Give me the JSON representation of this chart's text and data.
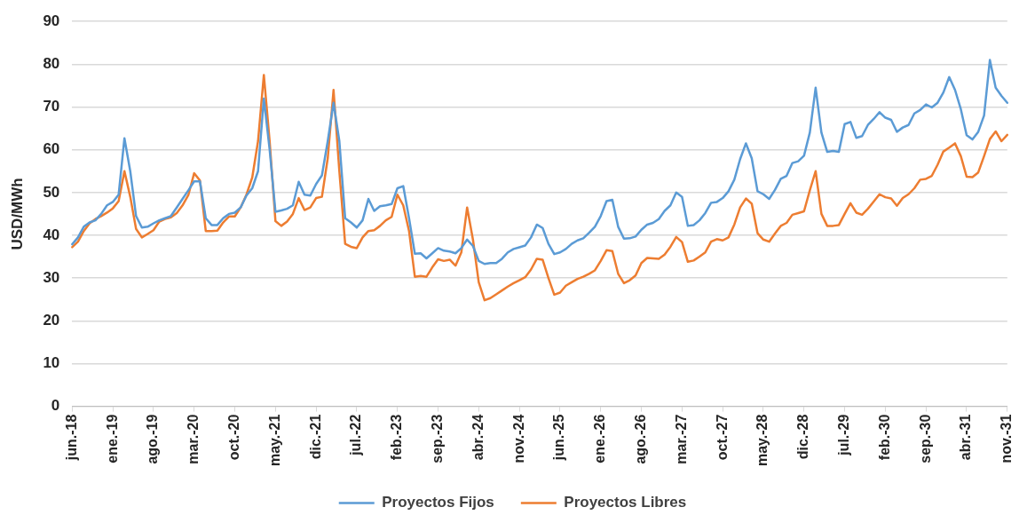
{
  "chart_data": {
    "type": "line",
    "ylabel": "USD/MWh",
    "ylim": [
      0,
      90
    ],
    "yticks": [
      0,
      10,
      20,
      30,
      40,
      50,
      60,
      70,
      80,
      90
    ],
    "grid": "y",
    "legend": "bottom",
    "marker": "none",
    "line_style": "solid",
    "categories": [
      "jun.-18",
      null,
      null,
      null,
      null,
      null,
      null,
      "ene.-19",
      null,
      null,
      null,
      null,
      null,
      null,
      "ago.-19",
      null,
      null,
      null,
      null,
      null,
      null,
      "mar.-20",
      null,
      null,
      null,
      null,
      null,
      null,
      "oct.-20",
      null,
      null,
      null,
      null,
      null,
      null,
      "may.-21",
      null,
      null,
      null,
      null,
      null,
      null,
      "dic.-21",
      null,
      null,
      null,
      null,
      null,
      null,
      "jul.-22",
      null,
      null,
      null,
      null,
      null,
      null,
      "feb.-23",
      null,
      null,
      null,
      null,
      null,
      null,
      "sep.-23",
      null,
      null,
      null,
      null,
      null,
      null,
      "abr.-24",
      null,
      null,
      null,
      null,
      null,
      null,
      "nov.-24",
      null,
      null,
      null,
      null,
      null,
      null,
      "jun.-25",
      null,
      null,
      null,
      null,
      null,
      null,
      "ene.-26",
      null,
      null,
      null,
      null,
      null,
      null,
      "ago.-26",
      null,
      null,
      null,
      null,
      null,
      null,
      "mar.-27",
      null,
      null,
      null,
      null,
      null,
      null,
      "oct.-27",
      null,
      null,
      null,
      null,
      null,
      null,
      "may.-28",
      null,
      null,
      null,
      null,
      null,
      null,
      "dic.-28",
      null,
      null,
      null,
      null,
      null,
      null,
      "jul.-29",
      null,
      null,
      null,
      null,
      null,
      null,
      "feb.-30",
      null,
      null,
      null,
      null,
      null,
      null,
      "sep.-30",
      null,
      null,
      null,
      null,
      null,
      null,
      "abr.-31",
      null,
      null,
      null,
      null,
      null,
      null,
      "nov.-31"
    ],
    "series": [
      {
        "name": "Proyectos Fijos",
        "color": "#5b9bd5",
        "values": [
          37.9,
          39.5,
          42,
          43,
          43.5,
          45,
          47,
          47.8,
          49.5,
          62.7,
          55,
          44.5,
          41.8,
          42,
          42.8,
          43.5,
          44,
          44.5,
          46.5,
          48.5,
          50.5,
          52.6,
          52.6,
          44,
          42.4,
          42.4,
          44,
          45,
          45.3,
          46.5,
          49.3,
          51,
          55,
          72,
          60,
          45.5,
          45.8,
          46.2,
          47,
          52.5,
          49.5,
          49.3,
          52,
          54,
          62,
          71,
          62,
          44,
          43,
          41.8,
          43.5,
          48.5,
          45.7,
          46.8,
          47,
          47.3,
          51,
          51.5,
          44,
          35.7,
          35.8,
          34.6,
          35.8,
          37,
          36.4,
          36.2,
          35.8,
          37,
          39,
          37.5,
          34,
          33.3,
          33.5,
          33.5,
          34.5,
          36,
          36.8,
          37.2,
          37.6,
          39.5,
          42.5,
          41.7,
          38,
          35.6,
          36,
          36.8,
          38,
          38.8,
          39.3,
          40.6,
          42,
          44.5,
          48,
          48.3,
          42,
          39.2,
          39.3,
          39.7,
          41.3,
          42.5,
          42.9,
          43.8,
          45.7,
          47,
          50,
          49,
          42.2,
          42.4,
          43.5,
          45.2,
          47.6,
          47.8,
          48.7,
          50.3,
          53,
          57.8,
          61.5,
          58,
          50.3,
          49.6,
          48.5,
          50.6,
          53.2,
          53.9,
          56.9,
          57.3,
          58.6,
          64,
          74.5,
          64,
          59.5,
          59.7,
          59.5,
          66,
          66.5,
          62.8,
          63.2,
          65.8,
          67.2,
          68.8,
          67.5,
          67,
          64.2,
          65.2,
          65.8,
          68.5,
          69.3,
          70.6,
          69.9,
          71,
          73.4,
          77,
          74,
          69.5,
          63.4,
          62.4,
          64.2,
          68,
          81,
          74.5,
          72.6,
          71
        ]
      },
      {
        "name": "Proyectos Libres",
        "color": "#ed7d31",
        "values": [
          37.2,
          38.5,
          41,
          42.8,
          43.8,
          44.5,
          45.3,
          46.3,
          48,
          55,
          49,
          41.5,
          39.5,
          40.3,
          41.2,
          43.2,
          43.8,
          44.2,
          45.2,
          47,
          49.4,
          54.5,
          52.8,
          41,
          41,
          41.1,
          43,
          44.4,
          44.4,
          46.5,
          49.5,
          53.5,
          62,
          77.5,
          62,
          43.3,
          42.2,
          43.2,
          45,
          48.7,
          45.9,
          46.5,
          48.7,
          49,
          58,
          74,
          55,
          38,
          37.3,
          37,
          39.5,
          41,
          41.2,
          42.2,
          43.5,
          44.3,
          49.5,
          47,
          41,
          30.3,
          30.5,
          30.3,
          32.5,
          34.4,
          34,
          34.3,
          32.9,
          36,
          46.5,
          39,
          29,
          24.8,
          25.3,
          26.2,
          27.1,
          28,
          28.8,
          29.5,
          30.2,
          32,
          34.5,
          34.3,
          30,
          26.1,
          26.6,
          28.2,
          29,
          29.8,
          30.3,
          31,
          31.8,
          34,
          36.5,
          36.3,
          31,
          28.8,
          29.5,
          30.6,
          33.5,
          34.7,
          34.6,
          34.5,
          35.5,
          37.3,
          39.6,
          38.4,
          33.8,
          34.1,
          35,
          36,
          38.5,
          39.1,
          38.8,
          39.5,
          42.5,
          46.5,
          48.6,
          47.4,
          40.5,
          39,
          38.5,
          40.4,
          42.2,
          42.9,
          44.8,
          45.2,
          45.6,
          50.5,
          55,
          45,
          42.2,
          42.2,
          42.4,
          45,
          47.5,
          45.3,
          44.8,
          46.2,
          47.9,
          49.6,
          48.9,
          48.6,
          46.9,
          48.7,
          49.6,
          51,
          53,
          53.2,
          53.9,
          56.5,
          59.6,
          60.5,
          61.5,
          58.5,
          53.7,
          53.6,
          54.7,
          58.5,
          62.5,
          64.3,
          62,
          63.5
        ]
      }
    ]
  }
}
